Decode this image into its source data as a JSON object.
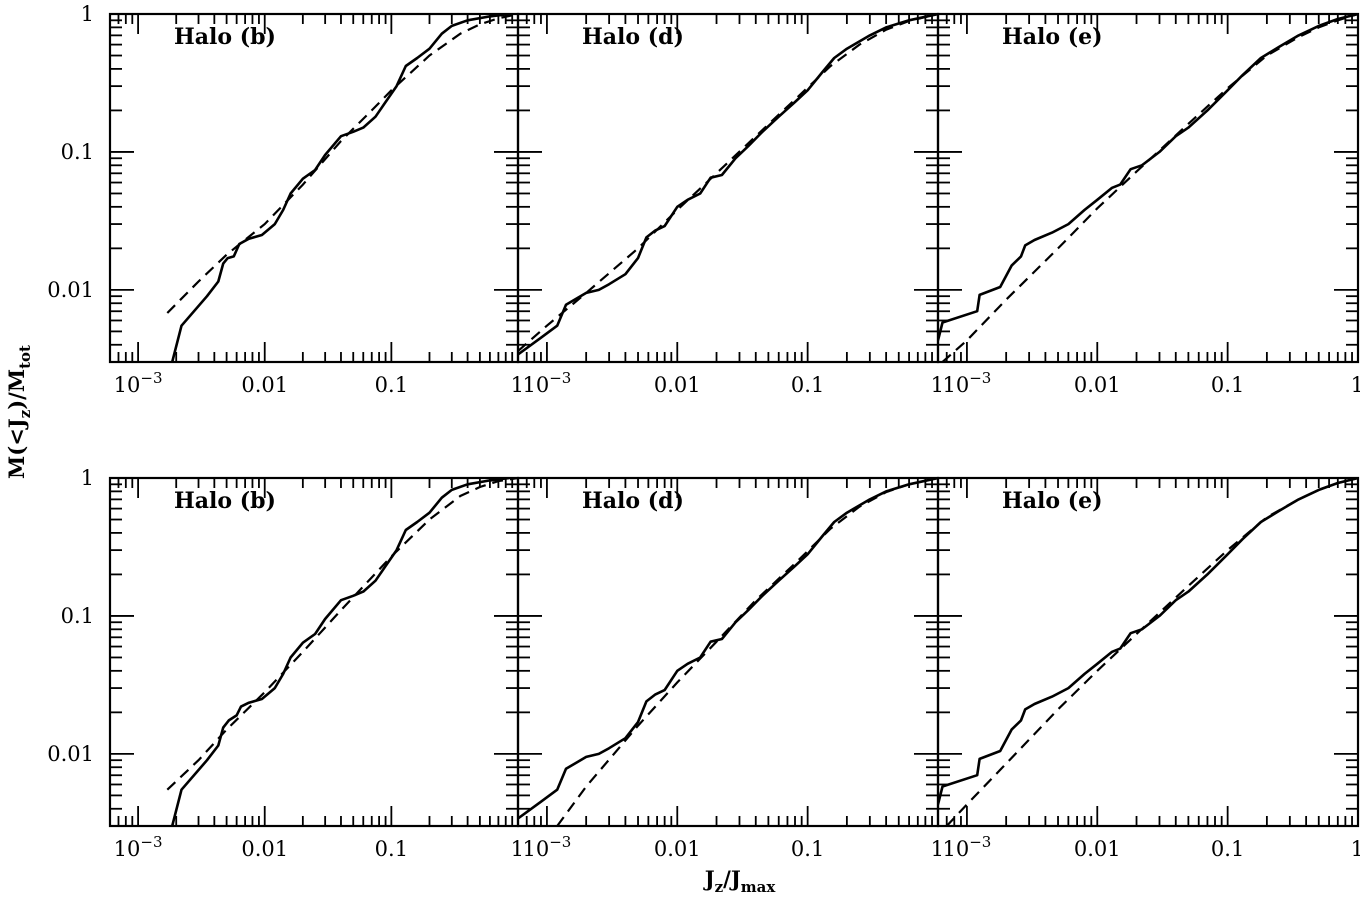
{
  "chart_data": {
    "type": "line",
    "layout": "2x3 grid of log-log panels",
    "xscale": "log",
    "yscale": "log",
    "xlim": [
      0.0006,
      1.0
    ],
    "ylim": [
      0.003,
      1.0
    ],
    "xticks": [
      {
        "value": 0.001,
        "base": "10",
        "exp": "−3"
      },
      {
        "value": 0.01,
        "text": "0.01"
      },
      {
        "value": 0.1,
        "text": "0.1"
      },
      {
        "value": 1,
        "text": "1"
      }
    ],
    "yticks": [
      {
        "value": 0.01,
        "text": "0.01"
      },
      {
        "value": 0.1,
        "text": "0.1"
      },
      {
        "value": 1,
        "text": "1"
      }
    ],
    "xlabel": {
      "main": "J",
      "sub1": "z",
      "mid": "/J",
      "sub2": "max"
    },
    "ylabel": {
      "a": "M(<J",
      "sub1": "z",
      "b": ")/M",
      "sub2": "tot"
    },
    "line_styles": {
      "simulation": "solid",
      "fit": "dashed"
    },
    "panels": [
      {
        "row": 0,
        "col": 0,
        "label": "Halo (b)",
        "solid": [
          [
            0.00186,
            0.003
          ],
          [
            0.0022,
            0.0055
          ],
          [
            0.0035,
            0.009
          ],
          [
            0.0043,
            0.0115
          ],
          [
            0.0047,
            0.0155
          ],
          [
            0.0051,
            0.017
          ],
          [
            0.0057,
            0.0175
          ],
          [
            0.0063,
            0.0215
          ],
          [
            0.0075,
            0.0235
          ],
          [
            0.0095,
            0.025
          ],
          [
            0.012,
            0.03
          ],
          [
            0.014,
            0.038
          ],
          [
            0.016,
            0.05
          ],
          [
            0.02,
            0.064
          ],
          [
            0.025,
            0.074
          ],
          [
            0.03,
            0.095
          ],
          [
            0.04,
            0.13
          ],
          [
            0.05,
            0.14
          ],
          [
            0.06,
            0.15
          ],
          [
            0.075,
            0.18
          ],
          [
            0.09,
            0.23
          ],
          [
            0.11,
            0.3
          ],
          [
            0.13,
            0.42
          ],
          [
            0.16,
            0.48
          ],
          [
            0.2,
            0.56
          ],
          [
            0.25,
            0.72
          ],
          [
            0.3,
            0.82
          ],
          [
            0.4,
            0.9
          ],
          [
            0.6,
            0.96
          ],
          [
            0.85,
            1.0
          ]
        ],
        "dashed": [
          [
            0.0017,
            0.0068
          ],
          [
            0.003,
            0.0115
          ],
          [
            0.005,
            0.018
          ],
          [
            0.01,
            0.03
          ],
          [
            0.02,
            0.058
          ],
          [
            0.04,
            0.12
          ],
          [
            0.07,
            0.2
          ],
          [
            0.1,
            0.28
          ],
          [
            0.2,
            0.5
          ],
          [
            0.35,
            0.72
          ],
          [
            0.5,
            0.84
          ],
          [
            0.7,
            0.93
          ],
          [
            1.0,
            1.0
          ]
        ]
      },
      {
        "row": 0,
        "col": 1,
        "label": "Halo (d)",
        "solid": [
          [
            0.0006,
            0.0034
          ],
          [
            0.0009,
            0.0045
          ],
          [
            0.0012,
            0.0055
          ],
          [
            0.0014,
            0.0078
          ],
          [
            0.002,
            0.0095
          ],
          [
            0.0025,
            0.01
          ],
          [
            0.003,
            0.011
          ],
          [
            0.004,
            0.013
          ],
          [
            0.005,
            0.017
          ],
          [
            0.0058,
            0.024
          ],
          [
            0.0068,
            0.027
          ],
          [
            0.008,
            0.029
          ],
          [
            0.01,
            0.04
          ],
          [
            0.012,
            0.045
          ],
          [
            0.015,
            0.05
          ],
          [
            0.018,
            0.065
          ],
          [
            0.022,
            0.068
          ],
          [
            0.028,
            0.09
          ],
          [
            0.035,
            0.11
          ],
          [
            0.045,
            0.14
          ],
          [
            0.06,
            0.18
          ],
          [
            0.08,
            0.23
          ],
          [
            0.1,
            0.28
          ],
          [
            0.13,
            0.38
          ],
          [
            0.16,
            0.48
          ],
          [
            0.2,
            0.56
          ],
          [
            0.3,
            0.7
          ],
          [
            0.4,
            0.8
          ],
          [
            0.6,
            0.9
          ],
          [
            1.0,
            1.0
          ]
        ],
        "dashed": [
          [
            0.0006,
            0.0036
          ],
          [
            0.001,
            0.0055
          ],
          [
            0.002,
            0.0095
          ],
          [
            0.005,
            0.02
          ],
          [
            0.01,
            0.038
          ],
          [
            0.02,
            0.07
          ],
          [
            0.04,
            0.13
          ],
          [
            0.08,
            0.24
          ],
          [
            0.15,
            0.42
          ],
          [
            0.25,
            0.6
          ],
          [
            0.4,
            0.77
          ],
          [
            0.6,
            0.89
          ],
          [
            1.0,
            1.0
          ]
        ]
      },
      {
        "row": 0,
        "col": 2,
        "label": "Halo (e)",
        "solid": [
          [
            0.0006,
            0.0043
          ],
          [
            0.00065,
            0.0058
          ],
          [
            0.0012,
            0.007
          ],
          [
            0.00125,
            0.0092
          ],
          [
            0.0018,
            0.0105
          ],
          [
            0.0022,
            0.015
          ],
          [
            0.0026,
            0.0175
          ],
          [
            0.0028,
            0.021
          ],
          [
            0.0033,
            0.023
          ],
          [
            0.0045,
            0.026
          ],
          [
            0.006,
            0.03
          ],
          [
            0.008,
            0.038
          ],
          [
            0.01,
            0.045
          ],
          [
            0.013,
            0.055
          ],
          [
            0.015,
            0.058
          ],
          [
            0.018,
            0.075
          ],
          [
            0.022,
            0.08
          ],
          [
            0.03,
            0.1
          ],
          [
            0.04,
            0.13
          ],
          [
            0.05,
            0.15
          ],
          [
            0.07,
            0.2
          ],
          [
            0.1,
            0.28
          ],
          [
            0.13,
            0.36
          ],
          [
            0.18,
            0.48
          ],
          [
            0.25,
            0.58
          ],
          [
            0.35,
            0.7
          ],
          [
            0.5,
            0.82
          ],
          [
            0.7,
            0.92
          ],
          [
            1.0,
            1.0
          ]
        ],
        "dashed": [
          [
            0.00065,
            0.003
          ],
          [
            0.001,
            0.0043
          ],
          [
            0.002,
            0.0085
          ],
          [
            0.005,
            0.02
          ],
          [
            0.01,
            0.039
          ],
          [
            0.02,
            0.072
          ],
          [
            0.05,
            0.16
          ],
          [
            0.1,
            0.29
          ],
          [
            0.2,
            0.5
          ],
          [
            0.35,
            0.68
          ],
          [
            0.5,
            0.8
          ],
          [
            0.7,
            0.9
          ],
          [
            1.0,
            1.0
          ]
        ]
      },
      {
        "row": 1,
        "col": 0,
        "label": "Halo (b)",
        "solid": [
          [
            0.00186,
            0.003
          ],
          [
            0.0022,
            0.0055
          ],
          [
            0.0035,
            0.009
          ],
          [
            0.0043,
            0.0115
          ],
          [
            0.0047,
            0.0155
          ],
          [
            0.0052,
            0.0175
          ],
          [
            0.006,
            0.019
          ],
          [
            0.0065,
            0.022
          ],
          [
            0.0075,
            0.0235
          ],
          [
            0.0095,
            0.025
          ],
          [
            0.012,
            0.03
          ],
          [
            0.014,
            0.038
          ],
          [
            0.016,
            0.05
          ],
          [
            0.02,
            0.064
          ],
          [
            0.025,
            0.074
          ],
          [
            0.03,
            0.095
          ],
          [
            0.04,
            0.13
          ],
          [
            0.05,
            0.14
          ],
          [
            0.06,
            0.15
          ],
          [
            0.075,
            0.18
          ],
          [
            0.09,
            0.23
          ],
          [
            0.11,
            0.3
          ],
          [
            0.13,
            0.42
          ],
          [
            0.16,
            0.48
          ],
          [
            0.2,
            0.56
          ],
          [
            0.25,
            0.72
          ],
          [
            0.3,
            0.82
          ],
          [
            0.4,
            0.9
          ],
          [
            0.6,
            0.96
          ],
          [
            0.85,
            1.0
          ]
        ],
        "dashed": [
          [
            0.0017,
            0.0055
          ],
          [
            0.003,
            0.009
          ],
          [
            0.005,
            0.015
          ],
          [
            0.01,
            0.028
          ],
          [
            0.02,
            0.055
          ],
          [
            0.04,
            0.11
          ],
          [
            0.07,
            0.19
          ],
          [
            0.1,
            0.27
          ],
          [
            0.2,
            0.5
          ],
          [
            0.35,
            0.74
          ],
          [
            0.5,
            0.86
          ],
          [
            0.7,
            0.95
          ],
          [
            1.0,
            1.0
          ]
        ]
      },
      {
        "row": 1,
        "col": 1,
        "label": "Halo (d)",
        "solid": [
          [
            0.0006,
            0.0034
          ],
          [
            0.0009,
            0.0045
          ],
          [
            0.0012,
            0.0055
          ],
          [
            0.0014,
            0.0078
          ],
          [
            0.002,
            0.0095
          ],
          [
            0.0025,
            0.01
          ],
          [
            0.003,
            0.011
          ],
          [
            0.004,
            0.013
          ],
          [
            0.005,
            0.017
          ],
          [
            0.0058,
            0.024
          ],
          [
            0.0068,
            0.027
          ],
          [
            0.008,
            0.029
          ],
          [
            0.01,
            0.04
          ],
          [
            0.012,
            0.045
          ],
          [
            0.015,
            0.05
          ],
          [
            0.018,
            0.065
          ],
          [
            0.022,
            0.068
          ],
          [
            0.028,
            0.09
          ],
          [
            0.035,
            0.11
          ],
          [
            0.045,
            0.14
          ],
          [
            0.06,
            0.18
          ],
          [
            0.08,
            0.23
          ],
          [
            0.1,
            0.28
          ],
          [
            0.13,
            0.38
          ],
          [
            0.16,
            0.48
          ],
          [
            0.2,
            0.56
          ],
          [
            0.3,
            0.7
          ],
          [
            0.4,
            0.8
          ],
          [
            0.6,
            0.9
          ],
          [
            1.0,
            1.0
          ]
        ],
        "dashed": [
          [
            0.0012,
            0.003
          ],
          [
            0.002,
            0.0058
          ],
          [
            0.005,
            0.016
          ],
          [
            0.01,
            0.033
          ],
          [
            0.02,
            0.065
          ],
          [
            0.04,
            0.13
          ],
          [
            0.08,
            0.24
          ],
          [
            0.15,
            0.43
          ],
          [
            0.25,
            0.62
          ],
          [
            0.4,
            0.79
          ],
          [
            0.6,
            0.9
          ],
          [
            1.0,
            1.0
          ]
        ]
      },
      {
        "row": 1,
        "col": 2,
        "label": "Halo (e)",
        "solid": [
          [
            0.0006,
            0.0043
          ],
          [
            0.00065,
            0.0058
          ],
          [
            0.0012,
            0.007
          ],
          [
            0.00125,
            0.0092
          ],
          [
            0.0018,
            0.0105
          ],
          [
            0.0022,
            0.015
          ],
          [
            0.0026,
            0.0175
          ],
          [
            0.0028,
            0.021
          ],
          [
            0.0033,
            0.023
          ],
          [
            0.0045,
            0.026
          ],
          [
            0.006,
            0.03
          ],
          [
            0.008,
            0.038
          ],
          [
            0.01,
            0.045
          ],
          [
            0.013,
            0.055
          ],
          [
            0.015,
            0.058
          ],
          [
            0.018,
            0.075
          ],
          [
            0.022,
            0.08
          ],
          [
            0.03,
            0.1
          ],
          [
            0.04,
            0.13
          ],
          [
            0.05,
            0.15
          ],
          [
            0.07,
            0.2
          ],
          [
            0.1,
            0.28
          ],
          [
            0.13,
            0.36
          ],
          [
            0.18,
            0.48
          ],
          [
            0.25,
            0.58
          ],
          [
            0.35,
            0.7
          ],
          [
            0.5,
            0.82
          ],
          [
            0.7,
            0.92
          ],
          [
            1.0,
            1.0
          ]
        ],
        "dashed": [
          [
            0.0007,
            0.003
          ],
          [
            0.001,
            0.0043
          ],
          [
            0.002,
            0.0085
          ],
          [
            0.005,
            0.021
          ],
          [
            0.01,
            0.04
          ],
          [
            0.02,
            0.074
          ],
          [
            0.05,
            0.165
          ],
          [
            0.1,
            0.3
          ],
          [
            0.2,
            0.52
          ],
          [
            0.35,
            0.7
          ],
          [
            0.5,
            0.82
          ],
          [
            0.7,
            0.92
          ],
          [
            1.0,
            1.0
          ]
        ]
      }
    ]
  }
}
